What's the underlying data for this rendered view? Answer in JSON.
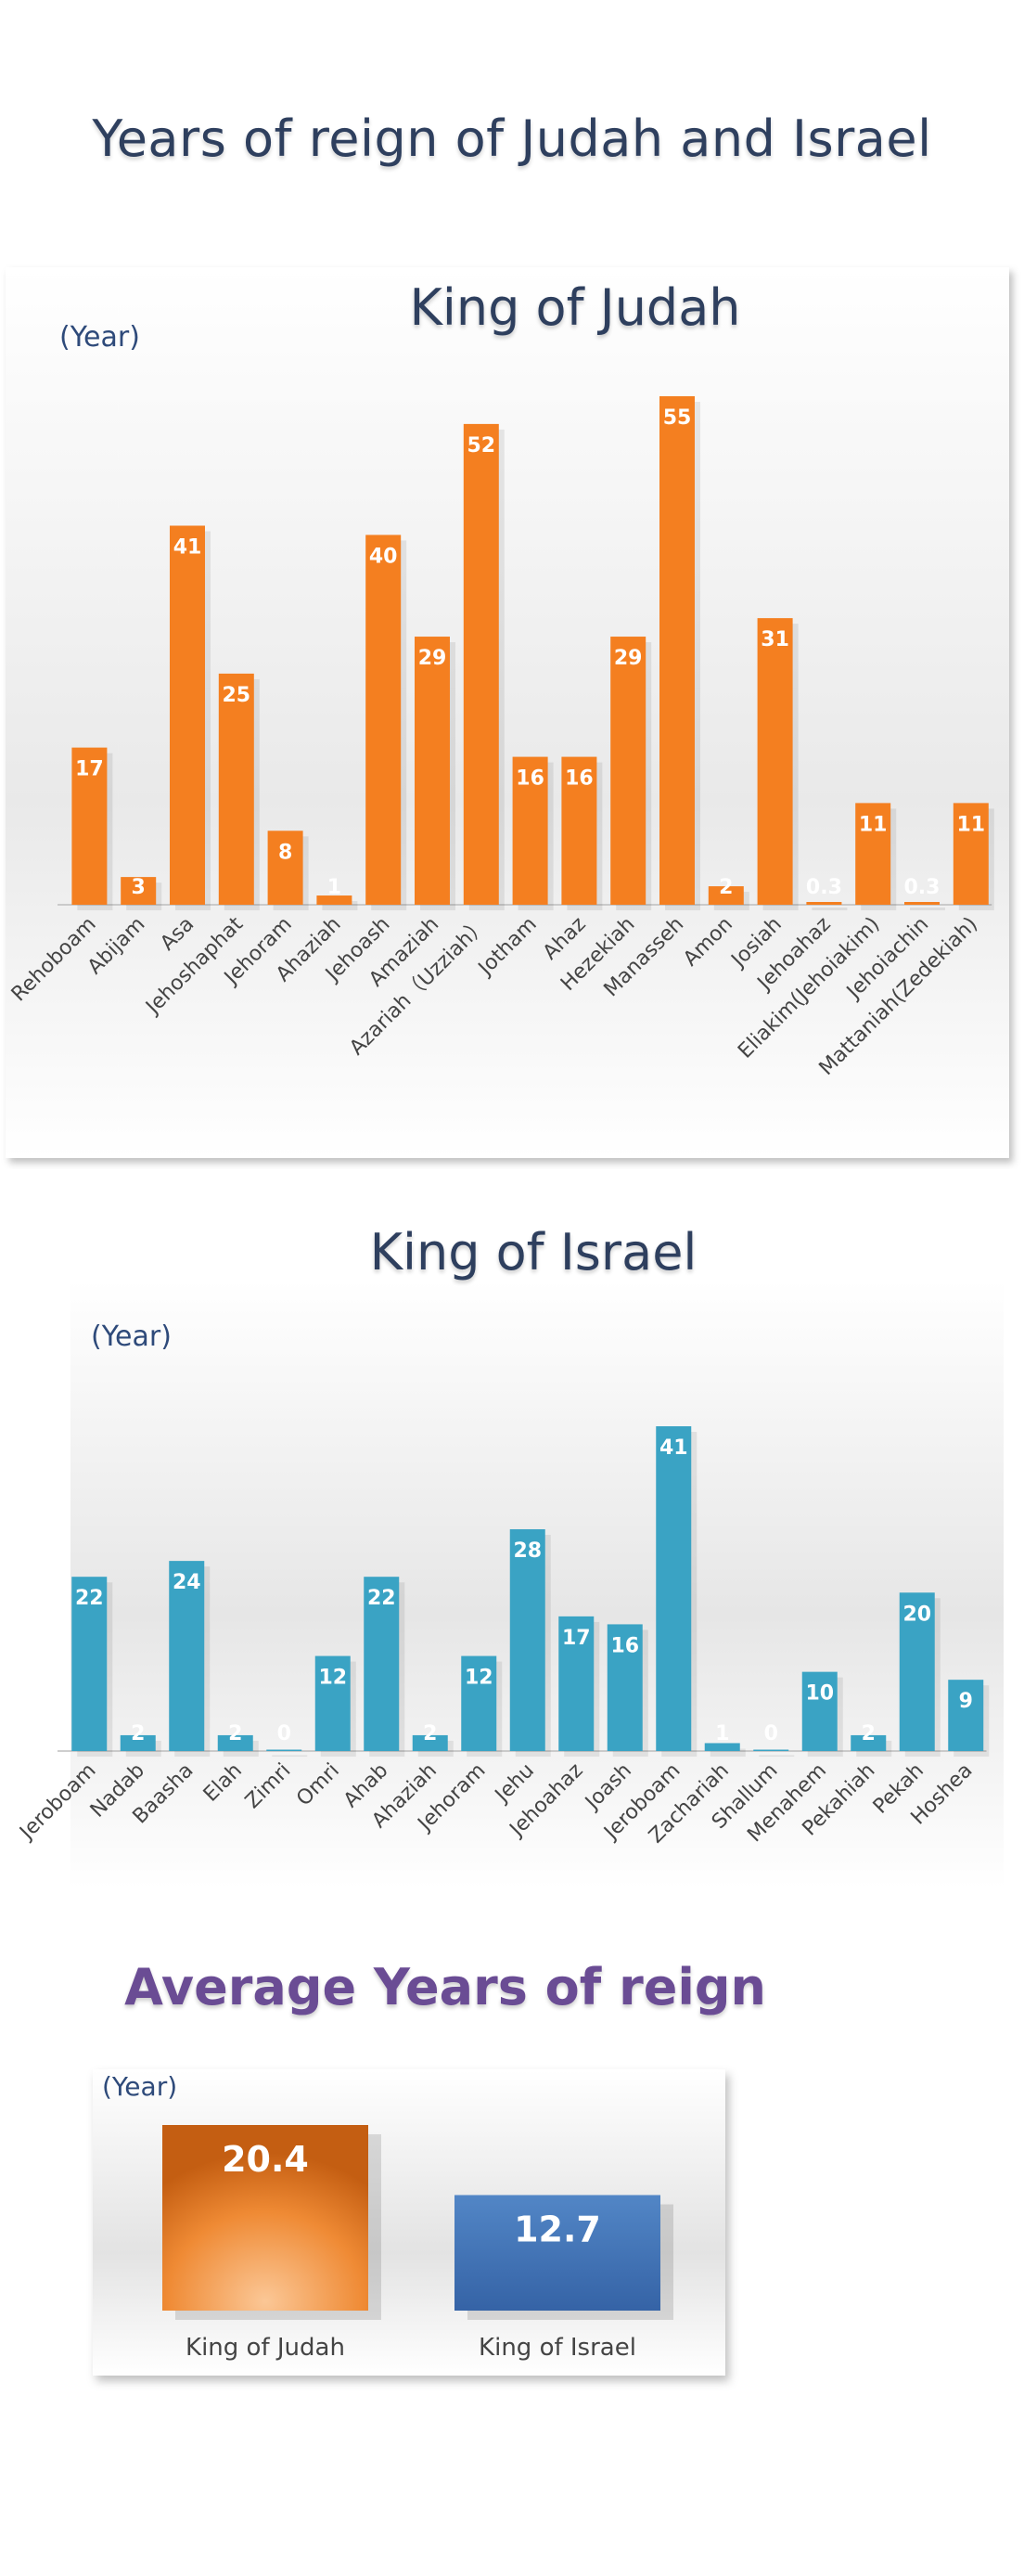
{
  "page": {
    "title": "Years of reign of Judah and Israel"
  },
  "colors": {
    "judah": "#f47f20",
    "israel": "#3aa3c4",
    "avg_judah": "#e87d22",
    "avg_israel": "#3f6fb2",
    "title": "#2e3f5e",
    "avg_title": "#6a4c94"
  },
  "chart_data": [
    {
      "type": "bar",
      "title": "King of Judah",
      "ylabel": "(Year)",
      "categories": [
        "Rehoboam",
        "Abijam",
        "Asa",
        "Jehoshaphat",
        "Jehoram",
        "Ahaziah",
        "Jehoash",
        "Amaziah",
        "Azariah（Uzziah）",
        "Jotham",
        "Ahaz",
        "Hezekiah",
        "Manasseh",
        "Amon",
        "Josiah",
        "Jehoahaz",
        "Eliakim(Jehoiakim)",
        "Jehoiachin",
        "Mattaniah(Zedekiah)"
      ],
      "values": [
        17,
        3,
        41,
        25,
        8,
        1,
        40,
        29,
        52,
        16,
        16,
        29,
        55,
        2,
        31,
        0.3,
        11,
        0.3,
        11
      ],
      "labels": [
        "17",
        "3",
        "41",
        "25",
        "8",
        "1",
        "40",
        "29",
        "52",
        "16",
        "16",
        "29",
        "55",
        "2",
        "31",
        "0.3",
        "11",
        "0.3",
        "11"
      ],
      "ylim": [
        0,
        55
      ]
    },
    {
      "type": "bar",
      "title": "King of Israel",
      "ylabel": "(Year)",
      "categories": [
        "Jeroboam",
        "Nadab",
        "Baasha",
        "Elah",
        "Zimri",
        "Omri",
        "Ahab",
        "Ahaziah",
        "Jehoram",
        "Jehu",
        "Jehoahaz",
        "Joash",
        "Jeroboam",
        "Zachariah",
        "Shallum",
        "Menahem",
        "Pekahiah",
        "Pekah",
        "Hoshea"
      ],
      "values": [
        22,
        2,
        24,
        2,
        0,
        12,
        22,
        2,
        12,
        28,
        17,
        16,
        41,
        1,
        0,
        10,
        2,
        20,
        9
      ],
      "labels": [
        "22",
        "2",
        "24",
        "2",
        "0",
        "12",
        "22",
        "2",
        "12",
        "28",
        "17",
        "16",
        "41",
        "1",
        "0",
        "10",
        "2",
        "20",
        "9"
      ],
      "ylim": [
        0,
        41
      ]
    },
    {
      "type": "bar",
      "title": "Average Years of reign",
      "ylabel": "(Year)",
      "categories": [
        "King of Judah",
        "King of Israel"
      ],
      "values": [
        20.4,
        12.7
      ],
      "labels": [
        "20.4",
        "12.7"
      ],
      "ylim": [
        0,
        20.4
      ]
    }
  ]
}
